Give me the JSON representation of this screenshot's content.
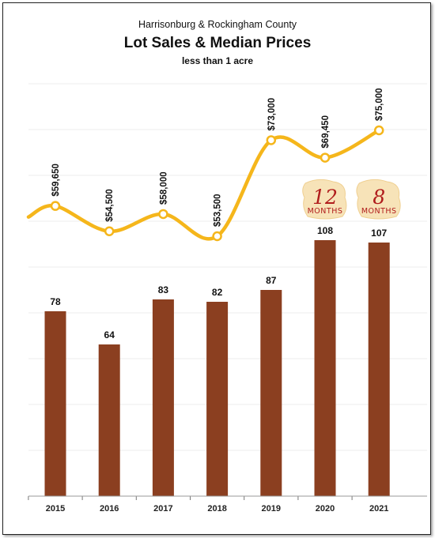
{
  "header": {
    "region": "Harrisonburg & Rockingham County",
    "title": "Lot Sales & Median Prices",
    "subtitle": "less than 1 acre"
  },
  "annotations": [
    {
      "year": "2020",
      "big": "12",
      "small": "MONTHS"
    },
    {
      "year": "2021",
      "big": "8",
      "small": "MONTHS"
    }
  ],
  "chart_data": {
    "type": "bar",
    "categories": [
      "2015",
      "2016",
      "2017",
      "2018",
      "2019",
      "2020",
      "2021"
    ],
    "series": [
      {
        "values": [
          78,
          64,
          83,
          82,
          87,
          108,
          107
        ],
        "labels": [
          "78",
          "64",
          "83",
          "82",
          "87",
          "108",
          "107"
        ],
        "color": "#8b3f20"
      },
      {
        "type": "line",
        "values": [
          59650,
          54500,
          58000,
          53500,
          73000,
          69450,
          75000
        ],
        "labels": [
          "$59,650",
          "$54,500",
          "$58,000",
          "$53,500",
          "$73,000",
          "$69,450",
          "$75,000"
        ],
        "color": "#f5b61b"
      }
    ],
    "title": "Lot Sales & Median Prices",
    "xlabel": "",
    "ylabel": "",
    "grid": true,
    "legend": "none"
  },
  "colors": {
    "bar": "#8b3f20",
    "line": "#f5b61b",
    "note": "#b01c1c",
    "note_bg": "#f7e3b8"
  }
}
